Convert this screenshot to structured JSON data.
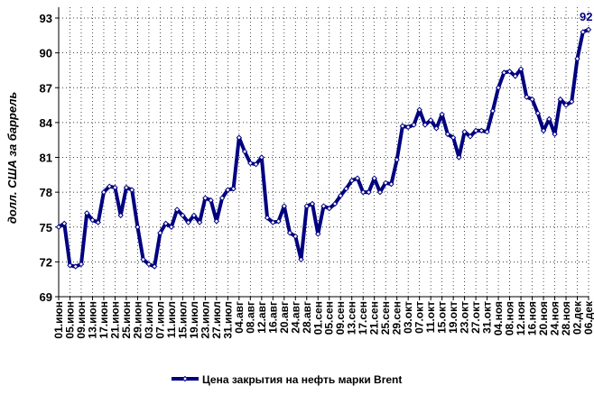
{
  "chart_data": {
    "type": "line",
    "y_label": "долл. США за баррель",
    "categories": [
      "01.июн",
      null,
      "05.июн",
      null,
      "09.июн",
      null,
      "13.июн",
      null,
      "17.июн",
      null,
      "21.июн",
      null,
      "25.июн",
      null,
      "29.июн",
      null,
      "03.июл",
      null,
      "07.июл",
      null,
      "11.июл",
      null,
      "15.июл",
      null,
      "19.июл",
      null,
      "23.июл",
      null,
      "27.июл",
      null,
      "31.июл",
      null,
      "04.авг",
      null,
      "08.авг",
      null,
      "12.авг",
      null,
      "16.авг",
      null,
      "20.авг",
      null,
      "24.авг",
      null,
      "28.авг",
      null,
      "01.сен",
      null,
      "05.сен",
      null,
      "09.сен",
      null,
      "13.сен",
      null,
      "17.сен",
      null,
      "21.сен",
      null,
      "25.сен",
      null,
      "29.сен",
      null,
      "03.окт",
      null,
      "07.окт",
      null,
      "11.окт",
      null,
      "15.окт",
      null,
      "19.окт",
      null,
      "23.окт",
      null,
      "27.окт",
      null,
      "31.окт",
      null,
      "04.ноя",
      null,
      "08.ноя",
      null,
      "12.ноя",
      null,
      "16.ноя",
      null,
      "20.ноя",
      null,
      "24.ноя",
      null,
      "28.ноя",
      null,
      "02.дек",
      null,
      "06.дек"
    ],
    "series": [
      {
        "name": "Цена закрытия на нефть марки Brent",
        "color": "#000080",
        "values": [
          75.0,
          75.3,
          71.7,
          71.6,
          71.8,
          76.2,
          75.6,
          75.4,
          78.0,
          78.5,
          78.4,
          76.0,
          78.4,
          78.2,
          75.0,
          72.2,
          71.8,
          71.6,
          74.5,
          75.3,
          75.0,
          76.5,
          76.0,
          75.4,
          76.0,
          75.4,
          77.5,
          77.3,
          75.5,
          77.5,
          78.2,
          78.3,
          82.7,
          81.5,
          80.5,
          80.4,
          81.0,
          75.8,
          75.4,
          75.5,
          76.8,
          74.5,
          74.2,
          72.2,
          76.8,
          77.0,
          74.4,
          76.8,
          76.6,
          77.0,
          77.7,
          78.3,
          79.0,
          79.2,
          78.0,
          78.0,
          79.2,
          78.0,
          78.8,
          78.7,
          80.8,
          83.7,
          83.6,
          83.8,
          85.1,
          83.8,
          84.2,
          83.5,
          84.7,
          83.0,
          82.7,
          81.0,
          83.2,
          82.8,
          83.3,
          83.3,
          83.2,
          85.0,
          87.0,
          88.3,
          88.4,
          88.0,
          88.6,
          86.2,
          86.0,
          84.8,
          83.3,
          84.3,
          83.0,
          86.0,
          85.5,
          85.8,
          89.5,
          91.8,
          92
        ]
      }
    ],
    "labeled_points": [
      94
    ],
    "ylim": [
      69,
      93
    ],
    "yticks": [
      69,
      72,
      75,
      78,
      81,
      84,
      87,
      90,
      93
    ],
    "grid": true
  }
}
